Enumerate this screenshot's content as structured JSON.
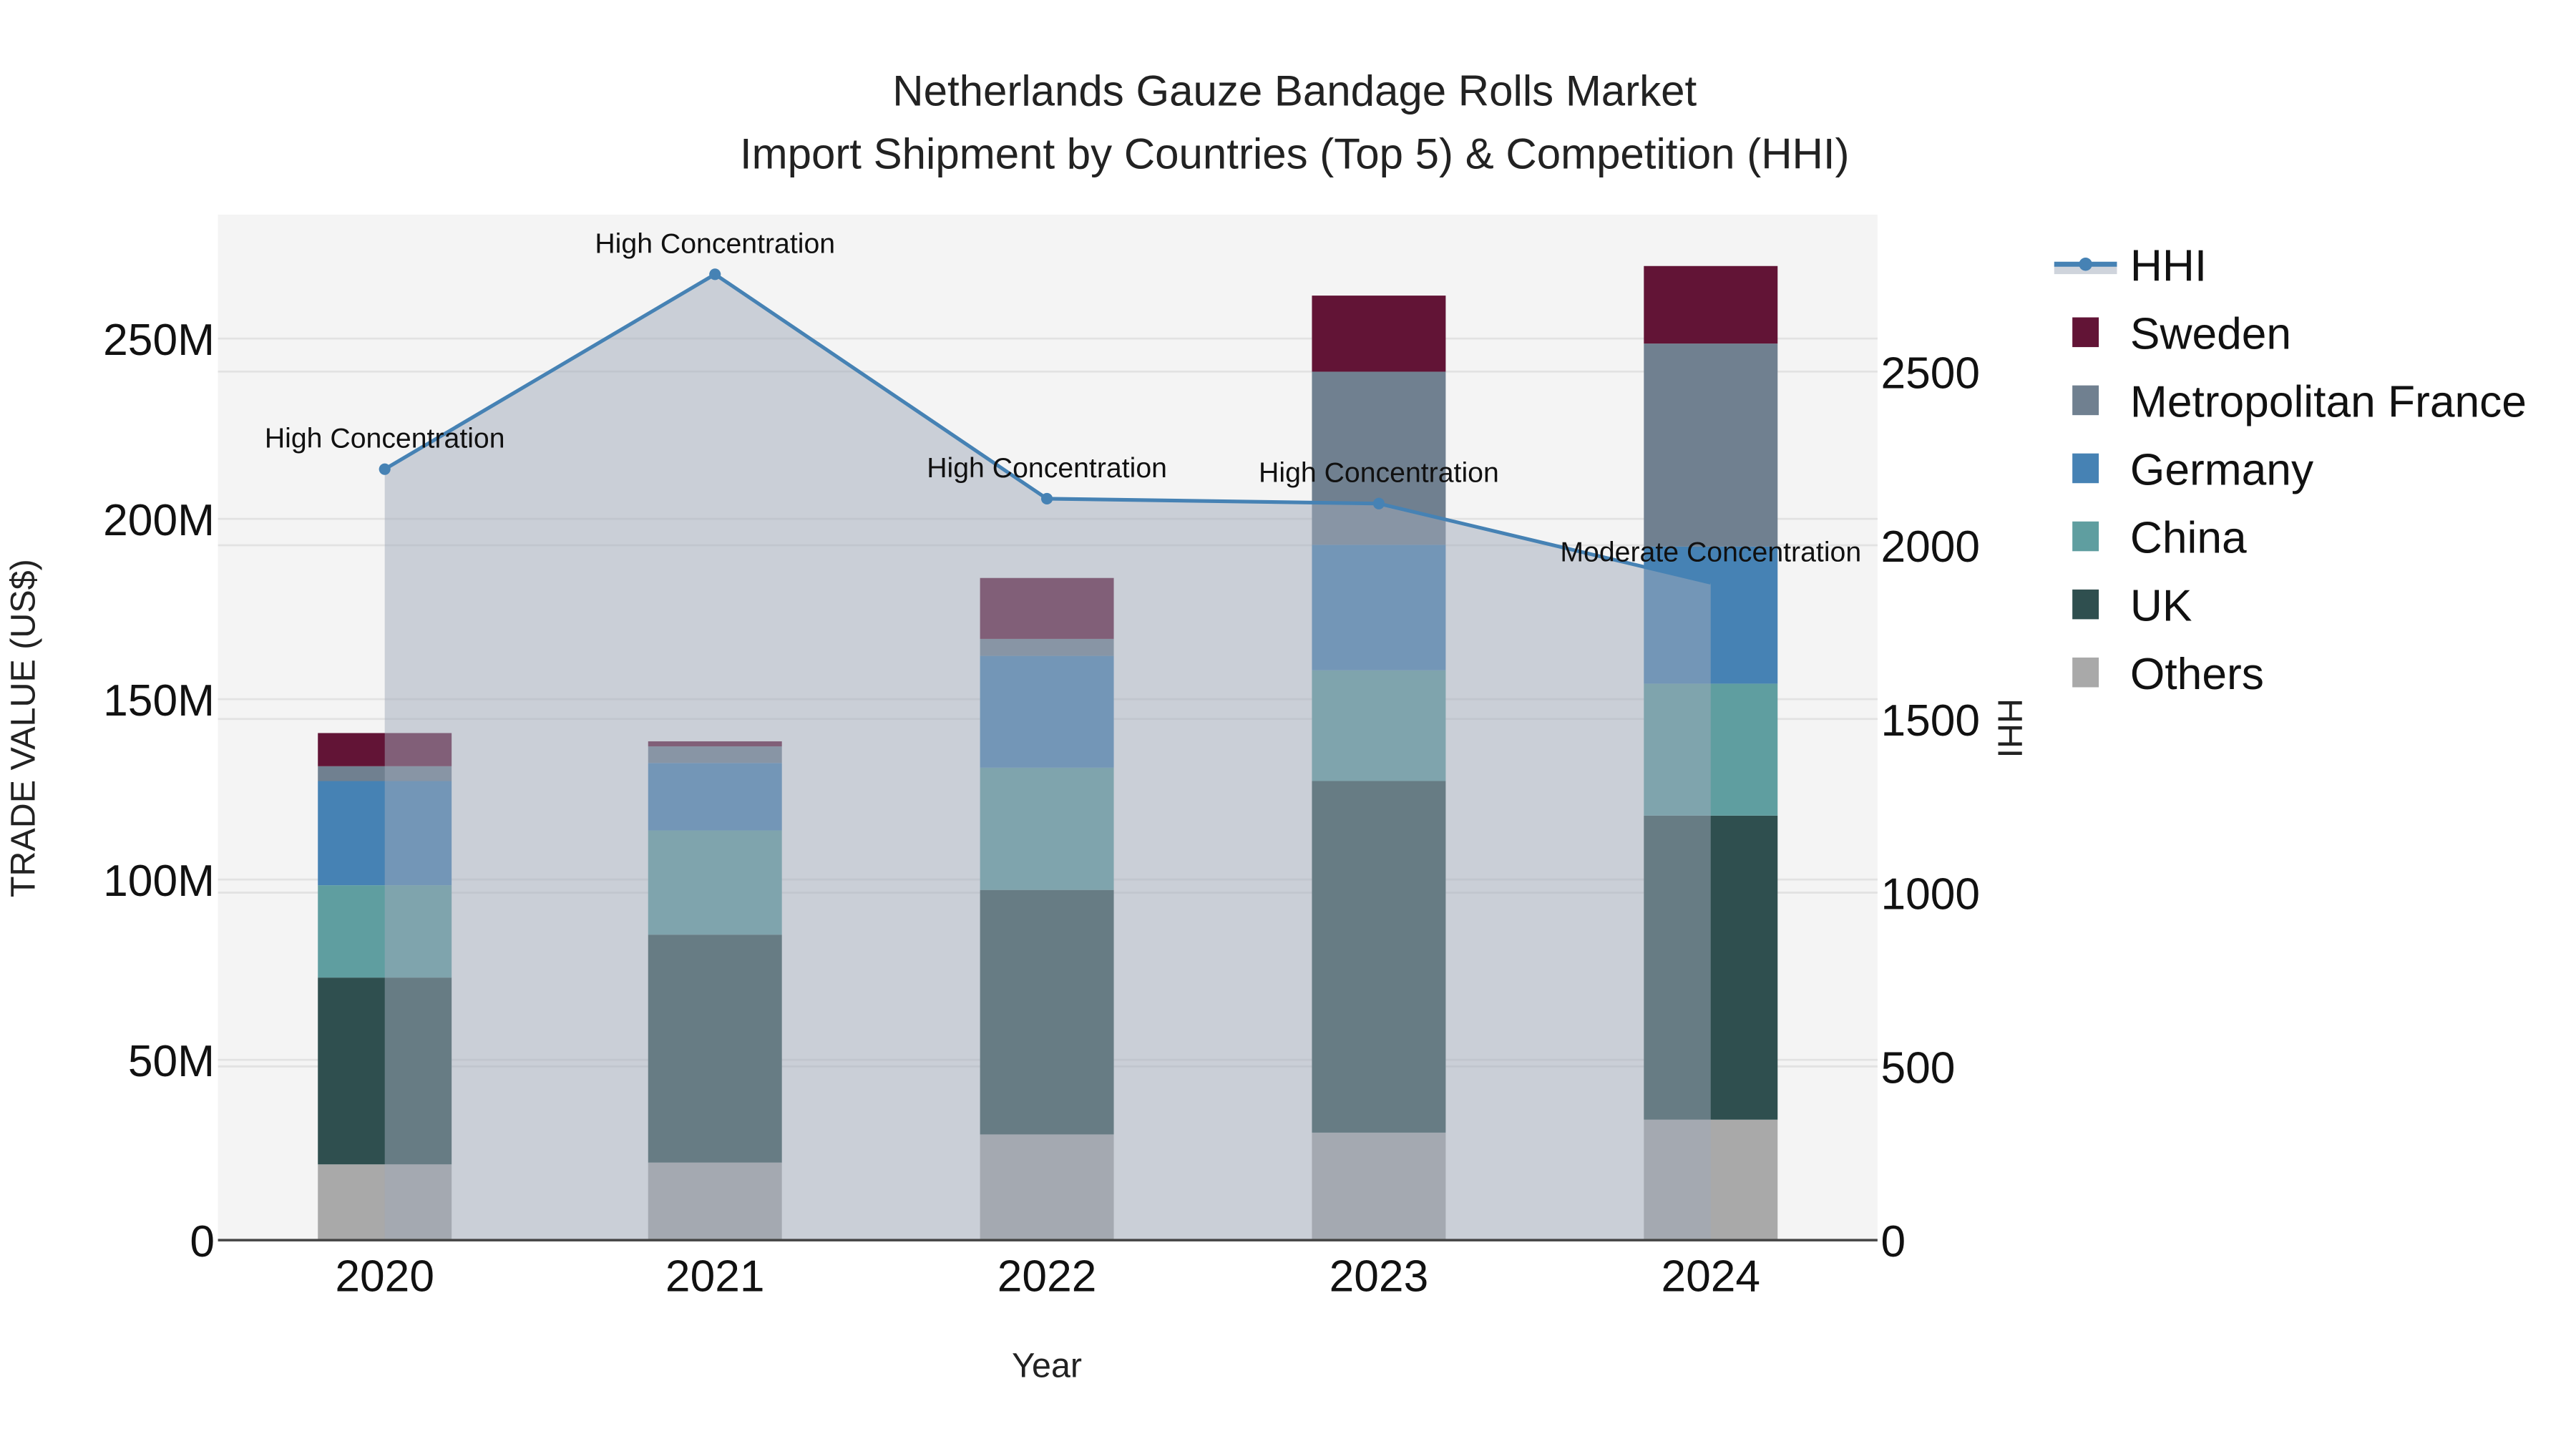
{
  "title": {
    "line1": "Netherlands Gauze Bandage Rolls Market",
    "line2": "Import Shipment by Countries (Top 5) & Competition (HHI)"
  },
  "axes": {
    "x_label": "Year",
    "y_left_label": "TRADE VALUE (US$)",
    "y_right_label": "HHI",
    "y_left_ticks": [
      "0",
      "50M",
      "100M",
      "150M",
      "200M",
      "250M"
    ],
    "y_right_ticks": [
      "0",
      "500",
      "1000",
      "1500",
      "2000",
      "2500"
    ],
    "x_ticks": [
      "2020",
      "2021",
      "2022",
      "2023",
      "2024"
    ]
  },
  "legend": [
    {
      "name": "HHI",
      "color": "#4682B4",
      "kind": "line"
    },
    {
      "name": "Sweden",
      "color": "#621436",
      "kind": "bar"
    },
    {
      "name": "Metropolitan France",
      "color": "#708090",
      "kind": "bar"
    },
    {
      "name": "Germany",
      "color": "#4682B4",
      "kind": "bar"
    },
    {
      "name": "China",
      "color": "#5F9EA0",
      "kind": "bar"
    },
    {
      "name": "UK",
      "color": "#2F4F4F",
      "kind": "bar"
    },
    {
      "name": "Others",
      "color": "#A9A9A9",
      "kind": "bar"
    }
  ],
  "chart_data": {
    "type": "bar",
    "stacked": true,
    "title": "Netherlands Gauze Bandage Rolls Market - Import Shipment by Countries (Top 5) & Competition (HHI)",
    "xlabel": "Year",
    "ylabel": "TRADE VALUE (US$)",
    "y2label": "HHI",
    "categories": [
      "2020",
      "2021",
      "2022",
      "2023",
      "2024"
    ],
    "ylim": [
      0,
      284000000
    ],
    "y2lim": [
      0,
      2950
    ],
    "series": [
      {
        "name": "Others",
        "color": "#A9A9A9",
        "values": [
          21000000,
          21500000,
          29300000,
          29800000,
          33400000
        ]
      },
      {
        "name": "UK",
        "color": "#2F4F4F",
        "values": [
          51800000,
          63200000,
          67800000,
          97500000,
          84300000
        ]
      },
      {
        "name": "China",
        "color": "#5F9EA0",
        "values": [
          25600000,
          28900000,
          33900000,
          30700000,
          36600000
        ]
      },
      {
        "name": "Germany",
        "color": "#4682B4",
        "values": [
          28900000,
          18700000,
          31000000,
          34800000,
          38000000
        ]
      },
      {
        "name": "Metropolitan France",
        "color": "#708090",
        "values": [
          4100000,
          4600000,
          4700000,
          48000000,
          56300000
        ]
      },
      {
        "name": "Sweden",
        "color": "#621436",
        "values": [
          9200000,
          1400000,
          16900000,
          21100000,
          21500000
        ]
      }
    ],
    "line_series": {
      "name": "HHI",
      "axis": "right",
      "color": "#4682B4",
      "fill": true,
      "values": [
        2219,
        2780,
        2134,
        2120,
        1892
      ],
      "annotations": [
        "High Concentration",
        "High Concentration",
        "High Concentration",
        "High Concentration",
        "Moderate Concentration"
      ]
    },
    "grid": true,
    "legend_position": "right"
  }
}
